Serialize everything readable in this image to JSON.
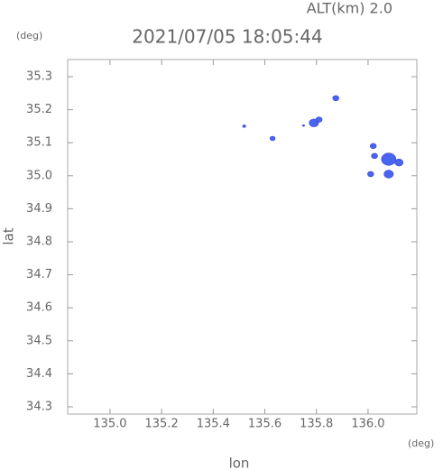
{
  "chart_data": {
    "type": "scatter",
    "title": "2021/07/05 18:05:44",
    "annotation": "ALT(km)  2.0",
    "y_unit": "(deg)",
    "x_unit": "(deg)",
    "xlabel": "lon",
    "ylabel": "lat",
    "x": [
      135.52,
      135.63,
      135.75,
      135.79,
      135.81,
      135.875,
      136.02,
      136.025,
      136.01,
      136.08,
      136.08,
      136.12
    ],
    "y": [
      35.15,
      35.113,
      35.152,
      35.16,
      35.17,
      35.235,
      35.09,
      35.06,
      35.005,
      35.05,
      35.005,
      35.04
    ],
    "sizes": [
      0.006,
      0.01,
      0.004,
      0.018,
      0.012,
      0.012,
      0.012,
      0.012,
      0.012,
      0.028,
      0.018,
      0.016
    ],
    "color": "#4a64f2",
    "xlim": [
      134.836,
      136.189
    ],
    "ylim": [
      34.278,
      35.352
    ],
    "xticks": [
      {
        "value": 135,
        "label": "135.0"
      },
      135.2,
      135.4,
      135.6,
      135.8,
      {
        "value": 136,
        "label": "136.0"
      }
    ],
    "yticks": [
      35.3,
      35.2,
      35.1,
      {
        "value": 35,
        "label": "35.0"
      },
      34.9,
      34.8,
      34.7,
      34.6,
      34.5,
      34.4,
      34.3
    ]
  }
}
